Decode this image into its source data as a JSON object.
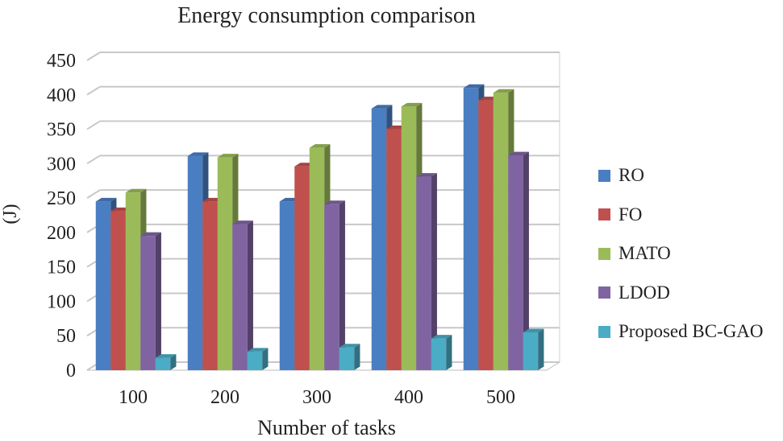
{
  "chart_data": {
    "type": "bar",
    "title": "Energy consumption comparison",
    "xlabel": "Number of tasks",
    "ylabel": "(J)",
    "ylim": [
      0,
      450
    ],
    "yticks": [
      0,
      50,
      100,
      150,
      200,
      250,
      300,
      350,
      400,
      450
    ],
    "categories": [
      "100",
      "200",
      "300",
      "400",
      "500"
    ],
    "grid": true,
    "legend_position": "right",
    "series": [
      {
        "name": "RO",
        "color": "#4a7ec2",
        "values": [
          245,
          311,
          245,
          380,
          410
        ]
      },
      {
        "name": "FO",
        "color": "#c0504d",
        "values": [
          231,
          245,
          296,
          350,
          392
        ]
      },
      {
        "name": "MATO",
        "color": "#9bbb59",
        "values": [
          258,
          309,
          323,
          383,
          403
        ]
      },
      {
        "name": "LDOD",
        "color": "#8064a2",
        "values": [
          195,
          212,
          241,
          281,
          312
        ]
      },
      {
        "name": "Proposed BC-GAO",
        "color": "#4bacc6",
        "values": [
          18,
          27,
          33,
          46,
          55
        ]
      }
    ]
  }
}
